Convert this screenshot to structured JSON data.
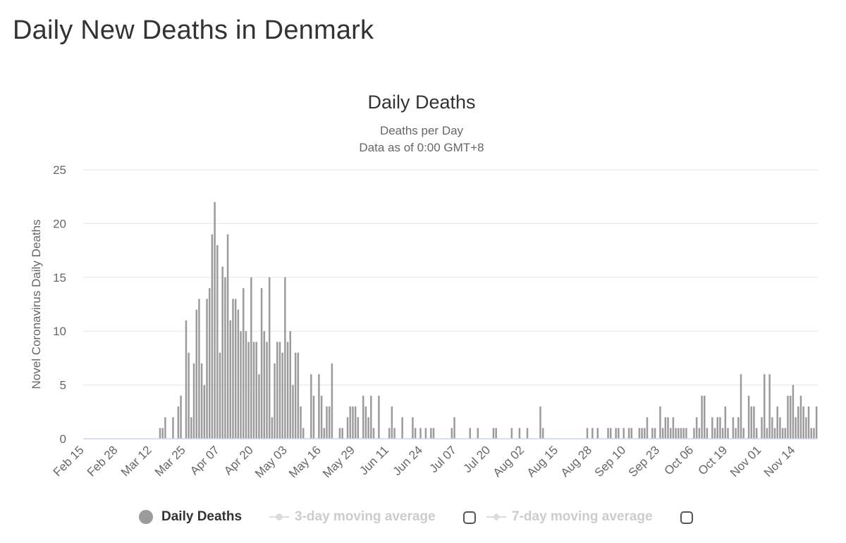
{
  "page": {
    "title": "Daily New Deaths in Denmark"
  },
  "chart_data": {
    "type": "bar",
    "title": "Daily Deaths",
    "subtitle": "Deaths per Day",
    "subtitle2": "Data as of 0:00 GMT+8",
    "ylabel": "Novel Coronavirus Daily Deaths",
    "ylim": [
      0,
      25
    ],
    "yticks": [
      0,
      5,
      10,
      15,
      20,
      25
    ],
    "xticks": [
      "Feb 15",
      "Feb 28",
      "Mar 12",
      "Mar 25",
      "Apr 07",
      "Apr 20",
      "May 03",
      "May 16",
      "May 29",
      "Jun 11",
      "Jun 24",
      "Jul 07",
      "Jul 20",
      "Aug 02",
      "Aug 15",
      "Aug 28",
      "Sep 10",
      "Sep 23",
      "Oct 06",
      "Oct 19",
      "Nov 01",
      "Nov 14"
    ],
    "first_date": "Feb 15",
    "last_date": "Nov 14",
    "grid": true,
    "color": "#9b9b9b",
    "series": [
      {
        "name": "Daily Deaths",
        "values": [
          0,
          0,
          0,
          0,
          0,
          0,
          0,
          0,
          0,
          0,
          0,
          0,
          0,
          0,
          0,
          0,
          0,
          0,
          0,
          0,
          0,
          0,
          0,
          0,
          0,
          0,
          0,
          0,
          0,
          1,
          1,
          2,
          0,
          0,
          2,
          0,
          3,
          4,
          0,
          11,
          8,
          2,
          7,
          12,
          13,
          7,
          5,
          13,
          14,
          19,
          22,
          18,
          8,
          16,
          15,
          19,
          11,
          13,
          13,
          12,
          10,
          14,
          10,
          9,
          15,
          9,
          9,
          6,
          14,
          10,
          9,
          15,
          2,
          7,
          9,
          9,
          8,
          15,
          9,
          10,
          5,
          8,
          8,
          3,
          1,
          0,
          0,
          6,
          4,
          0,
          6,
          4,
          1,
          3,
          3,
          7,
          0,
          0,
          1,
          1,
          0,
          2,
          3,
          3,
          3,
          2,
          0,
          4,
          3,
          2,
          4,
          1,
          0,
          4,
          0,
          0,
          0,
          1,
          3,
          1,
          0,
          0,
          2,
          0,
          0,
          0,
          2,
          1,
          0,
          1,
          0,
          1,
          0,
          1,
          1,
          0,
          0,
          0,
          0,
          0,
          0,
          1,
          2,
          0,
          0,
          0,
          0,
          0,
          1,
          0,
          0,
          1,
          0,
          0,
          0,
          0,
          0,
          1,
          1,
          0,
          0,
          0,
          0,
          0,
          1,
          0,
          0,
          1,
          0,
          0,
          1,
          0,
          0,
          0,
          0,
          3,
          1,
          0,
          0,
          0,
          0,
          0,
          0,
          0,
          0,
          0,
          0,
          0,
          0,
          0,
          0,
          0,
          0,
          1,
          0,
          1,
          0,
          1,
          0,
          0,
          0,
          1,
          1,
          0,
          1,
          1,
          0,
          1,
          0,
          1,
          1,
          0,
          0,
          1,
          1,
          1,
          2,
          0,
          1,
          1,
          0,
          3,
          1,
          2,
          2,
          1,
          2,
          1,
          1,
          1,
          1,
          1,
          0,
          0,
          1,
          2,
          1,
          4,
          4,
          1,
          0,
          2,
          1,
          2,
          2,
          1,
          3,
          1,
          0,
          2,
          1,
          2,
          6,
          1,
          0,
          4,
          3,
          3,
          1,
          0,
          2,
          6,
          1,
          6,
          2,
          1,
          3,
          2,
          1,
          1,
          4,
          4,
          5,
          2,
          3,
          4,
          3,
          2,
          3,
          1,
          1,
          3
        ]
      }
    ],
    "legend": [
      {
        "name": "Daily Deaths",
        "active": true
      },
      {
        "name": "3-day moving average",
        "active": false
      },
      {
        "name": "7-day moving average",
        "active": false
      }
    ]
  }
}
